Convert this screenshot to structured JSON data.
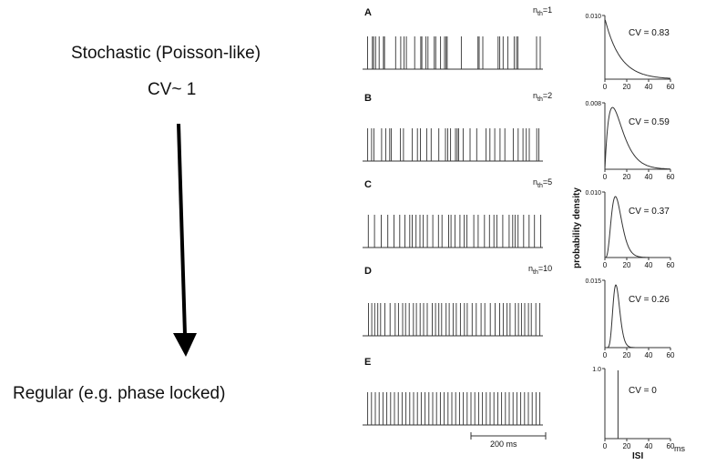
{
  "left_labels": {
    "top_line1": "Stochastic (Poisson-like)",
    "top_line2": "CV~ 1",
    "bottom": "Regular (e.g. phase locked)"
  },
  "panels": [
    {
      "letter": "A",
      "nth": "1",
      "cv": "CV = 0.83",
      "ymax": "0.010",
      "interval": 14,
      "jitter": 1.0
    },
    {
      "letter": "B",
      "nth": "2",
      "cv": "CV = 0.59",
      "ymax": "0.008",
      "interval": 14,
      "jitter": 0.75
    },
    {
      "letter": "C",
      "nth": "5",
      "cv": "CV = 0.37",
      "ymax": "0.010",
      "interval": 12,
      "jitter": 0.45
    },
    {
      "letter": "D",
      "nth": "10",
      "cv": "CV = 0.26",
      "ymax": "0.015",
      "interval": 11,
      "jitter": 0.3
    },
    {
      "letter": "E",
      "nth": "",
      "cv": "CV = 0",
      "ymax": "1.0",
      "interval": 10,
      "jitter": 0
    }
  ],
  "nth_prefix": "n",
  "nth_sub": "th",
  "x_ticks": [
    "0",
    "20",
    "40",
    "60"
  ],
  "x_unit": "ms",
  "x_axis_label": "ISI",
  "y_axis_label": "probability density",
  "scale_bar_label": "200 ms",
  "colors": {
    "line": "#333333",
    "arrow": "#000000",
    "text": "#111111"
  }
}
